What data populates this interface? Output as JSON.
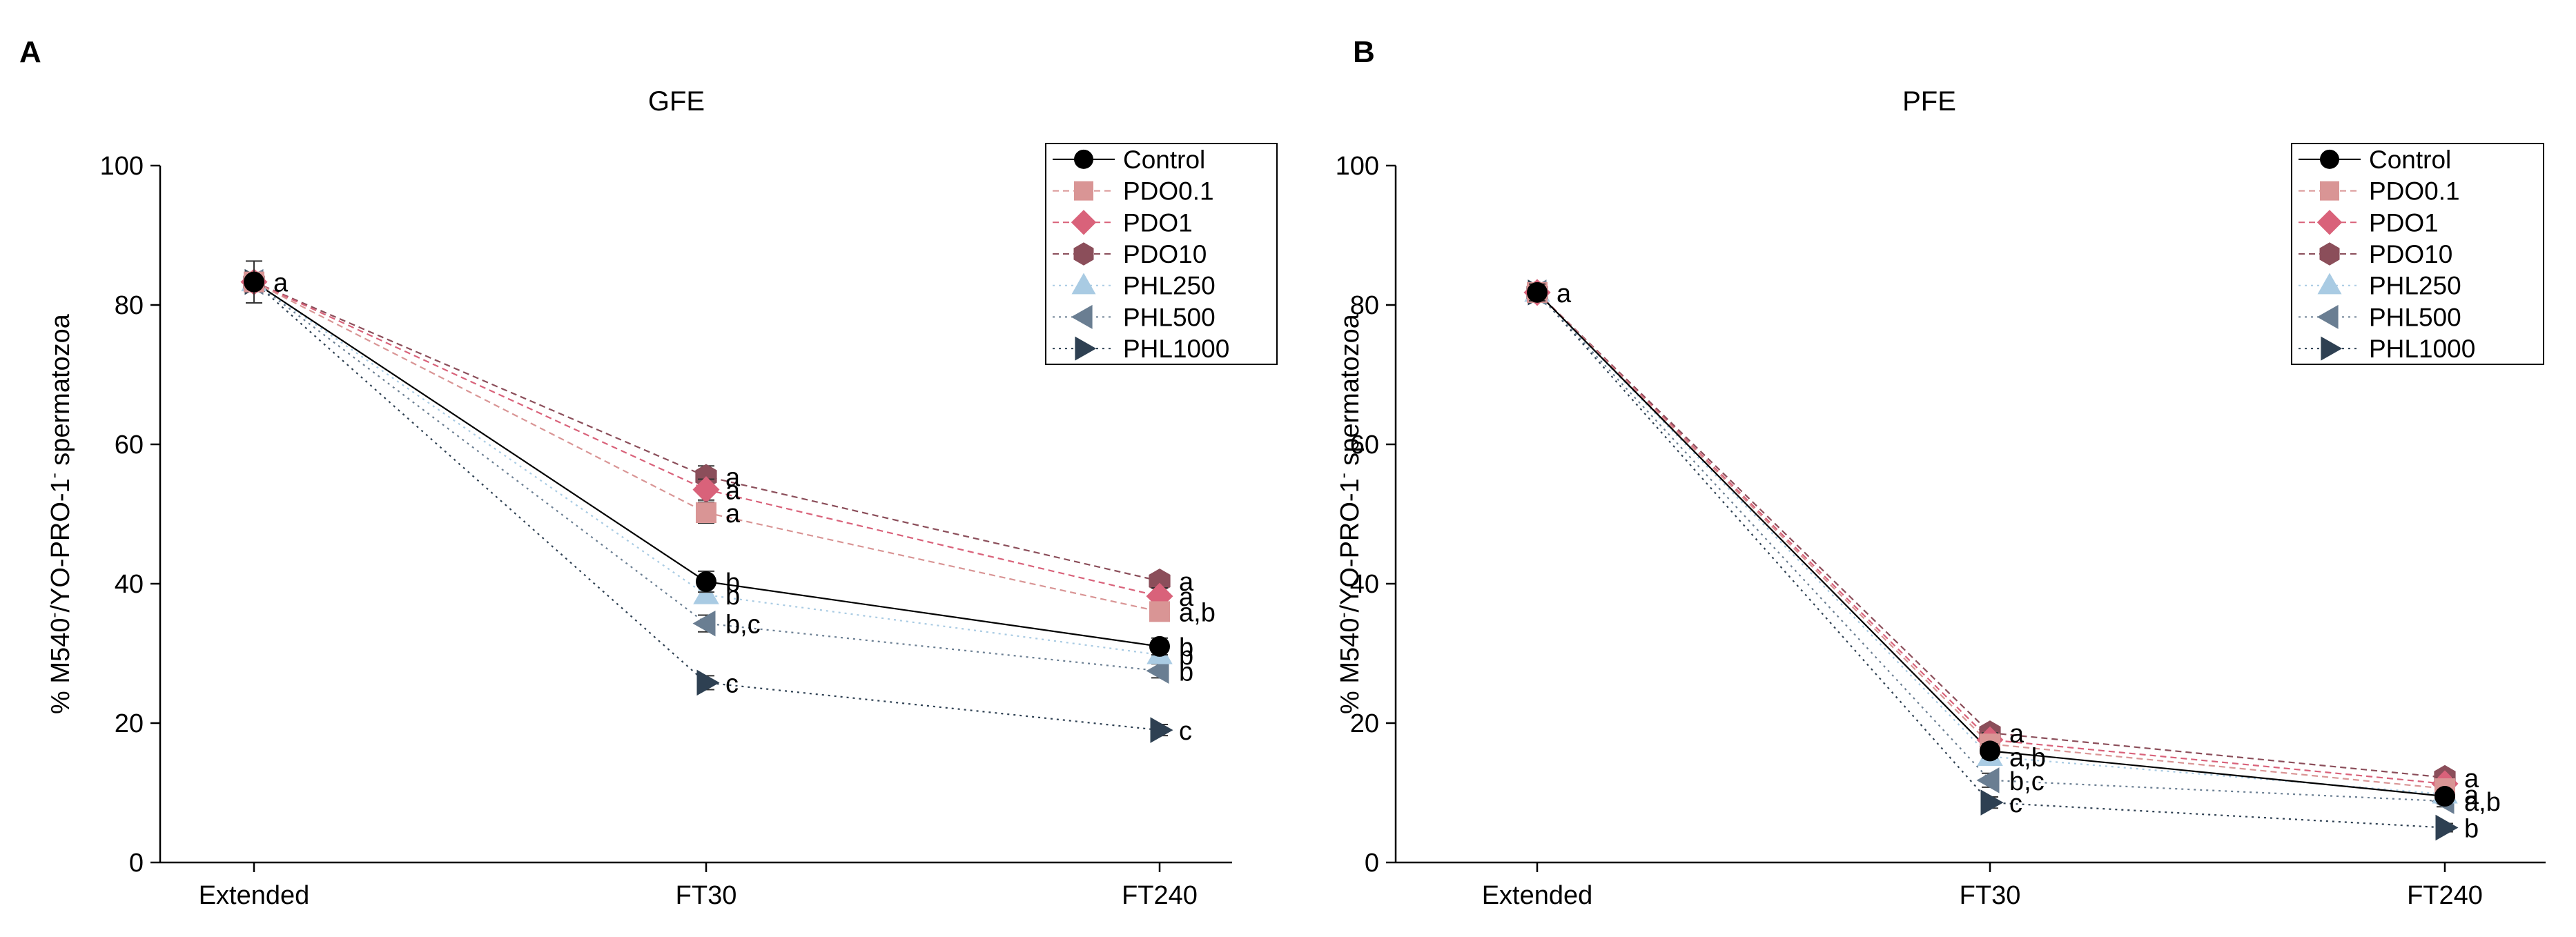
{
  "chart_data": [
    {
      "type": "line",
      "panel_label": "A",
      "title": "GFE",
      "xlabel": "",
      "ylabel_main": "% M540",
      "ylabel_sup1": "-",
      "ylabel_mid": "/YO-PRO-1",
      "ylabel_sup2": "-",
      "ylabel_end": " spermatozoa",
      "categories": [
        "Extended",
        "FT30",
        "FT240"
      ],
      "ylim": [
        0,
        100
      ],
      "yticks": [
        "0",
        "20",
        "40",
        "60",
        "80",
        "100"
      ],
      "legend_position": "top-right",
      "series": [
        {
          "name": "Control",
          "marker": "circle",
          "color": "#000000",
          "line": "solid",
          "values": [
            83.3,
            40.3,
            31.0
          ],
          "errors": [
            3.0,
            1.5,
            1.2
          ],
          "letters": [
            "a",
            "b",
            "b"
          ]
        },
        {
          "name": "PDO0.1",
          "marker": "square",
          "color": "#D99595",
          "line": "dashed",
          "values": [
            83.3,
            50.2,
            36.0
          ],
          "errors": [
            0,
            1.5,
            1.2
          ],
          "letters": [
            "",
            "a",
            "a,b"
          ]
        },
        {
          "name": "PDO1",
          "marker": "diamond",
          "color": "#D9627A",
          "line": "dashed",
          "values": [
            83.3,
            53.5,
            38.2
          ],
          "errors": [
            0,
            1.5,
            1.2
          ],
          "letters": [
            "",
            "a",
            "a"
          ]
        },
        {
          "name": "PDO10",
          "marker": "hexagon",
          "color": "#8B4E5A",
          "line": "dashed",
          "values": [
            83.3,
            55.4,
            40.4
          ],
          "errors": [
            0,
            1.5,
            1.0
          ],
          "letters": [
            "",
            "a",
            "a"
          ]
        },
        {
          "name": "PHL250",
          "marker": "triangle-up",
          "color": "#A9CBE3",
          "line": "dotted",
          "values": [
            83.3,
            38.4,
            29.8
          ],
          "errors": [
            0,
            1.2,
            1.0
          ],
          "letters": [
            "",
            "b",
            "b"
          ]
        },
        {
          "name": "PHL500",
          "marker": "triangle-left",
          "color": "#6A7E92",
          "line": "dotted",
          "values": [
            83.3,
            34.3,
            27.5
          ],
          "errors": [
            0,
            1.2,
            1.0
          ],
          "letters": [
            "",
            "b,c",
            "b"
          ]
        },
        {
          "name": "PHL1000",
          "marker": "triangle-right",
          "color": "#2E4052",
          "line": "dotted",
          "values": [
            83.3,
            25.8,
            19.0
          ],
          "errors": [
            0,
            1.0,
            0.8
          ],
          "letters": [
            "",
            "c",
            "c"
          ]
        }
      ]
    },
    {
      "type": "line",
      "panel_label": "B",
      "title": "PFE",
      "xlabel": "",
      "ylabel_main": "% M540",
      "ylabel_sup1": "-",
      "ylabel_mid": "/YO-PRO-1",
      "ylabel_sup2": "-",
      "ylabel_end": " spermatozoa",
      "categories": [
        "Extended",
        "FT30",
        "FT240"
      ],
      "ylim": [
        0,
        100
      ],
      "yticks": [
        "0",
        "20",
        "40",
        "60",
        "80",
        "100"
      ],
      "legend_position": "top-right",
      "series": [
        {
          "name": "Control",
          "marker": "circle",
          "color": "#000000",
          "line": "solid",
          "values": [
            81.8,
            16.0,
            9.5
          ],
          "errors": [
            1.2,
            1.0,
            0.8
          ],
          "letters": [
            "a",
            "",
            ""
          ]
        },
        {
          "name": "PDO0.1",
          "marker": "square",
          "color": "#D99595",
          "line": "dashed",
          "values": [
            81.8,
            17.0,
            10.6
          ],
          "errors": [
            0,
            1.0,
            0.8
          ],
          "letters": [
            "",
            "",
            ""
          ]
        },
        {
          "name": "PDO1",
          "marker": "diamond",
          "color": "#D9627A",
          "line": "dashed",
          "values": [
            81.8,
            17.6,
            11.3
          ],
          "errors": [
            0,
            1.0,
            0.8
          ],
          "letters": [
            "",
            "",
            ""
          ]
        },
        {
          "name": "PDO10",
          "marker": "hexagon",
          "color": "#8B4E5A",
          "line": "dashed",
          "values": [
            81.8,
            18.6,
            12.2
          ],
          "errors": [
            0,
            1.0,
            0.8
          ],
          "letters": [
            "",
            "a",
            "a"
          ]
        },
        {
          "name": "PHL250",
          "marker": "triangle-up",
          "color": "#A9CBE3",
          "line": "dotted",
          "values": [
            81.8,
            15.2,
            9.8
          ],
          "errors": [
            0,
            1.0,
            0.8
          ],
          "letters": [
            "",
            "a,b",
            "a"
          ]
        },
        {
          "name": "PHL500",
          "marker": "triangle-left",
          "color": "#6A7E92",
          "line": "dotted",
          "values": [
            81.8,
            11.8,
            8.8
          ],
          "errors": [
            0,
            1.0,
            0.8
          ],
          "letters": [
            "",
            "b,c",
            "a,b"
          ]
        },
        {
          "name": "PHL1000",
          "marker": "triangle-right",
          "color": "#2E4052",
          "line": "dotted",
          "values": [
            81.8,
            8.6,
            5.0
          ],
          "errors": [
            0,
            0.8,
            0.6
          ],
          "letters": [
            "",
            "c",
            "b"
          ]
        }
      ]
    }
  ]
}
